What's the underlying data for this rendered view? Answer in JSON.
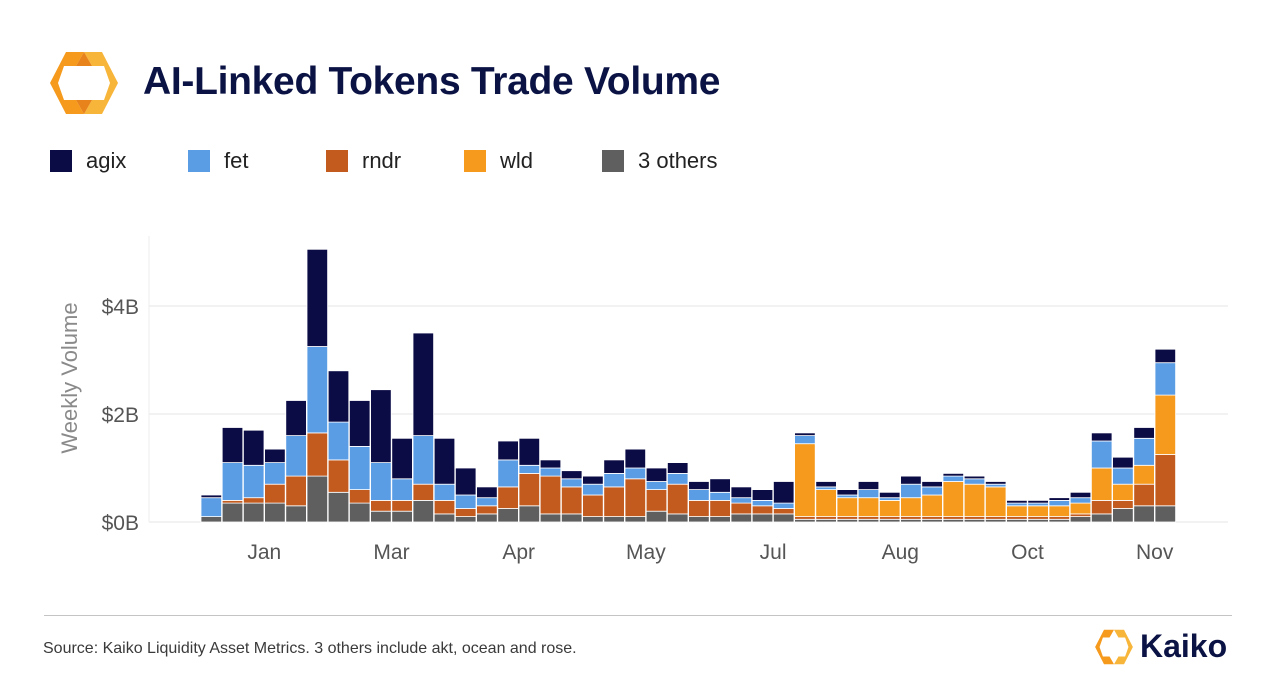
{
  "header": {
    "title": "AI-Linked Tokens Trade Volume",
    "logo_icon": "kaiko-hexagon-logo-icon"
  },
  "colors": {
    "agix": "#0b0b45",
    "fet": "#5b9de4",
    "rndr": "#c35a1e",
    "wld": "#f59a1d",
    "others": "#5f5f5f",
    "title": "#0b1345"
  },
  "legend": [
    {
      "key": "agix",
      "label": "agix",
      "color": "#0b0b45"
    },
    {
      "key": "fet",
      "label": "fet",
      "color": "#5b9de4"
    },
    {
      "key": "rndr",
      "label": "rndr",
      "color": "#c35a1e"
    },
    {
      "key": "wld",
      "label": "wld",
      "color": "#f59a1d"
    },
    {
      "key": "others",
      "label": "3 others",
      "color": "#5f5f5f"
    }
  ],
  "chart_data": {
    "type": "bar",
    "stacked": true,
    "title": "AI-Linked Tokens Trade Volume",
    "xlabel": "",
    "ylabel": "Weekly Volume",
    "ylim": [
      0,
      5.2
    ],
    "y_ticks": [
      0,
      2,
      4
    ],
    "y_tick_labels": [
      "$0B",
      "$2B",
      "$4B"
    ],
    "x_tick_labels": [
      "Jan",
      "Mar",
      "Apr",
      "May",
      "Jul",
      "Aug",
      "Oct",
      "Nov"
    ],
    "x_tick_bar_index": [
      2.5,
      8.5,
      14.5,
      20.5,
      26.5,
      32.5,
      38.5,
      44.5
    ],
    "grid": true,
    "legend_position": "top-left",
    "categories": [
      "w1",
      "w2",
      "w3",
      "w4",
      "w5",
      "w6",
      "w7",
      "w8",
      "w9",
      "w10",
      "w11",
      "w12",
      "w13",
      "w14",
      "w15",
      "w16",
      "w17",
      "w18",
      "w19",
      "w20",
      "w21",
      "w22",
      "w23",
      "w24",
      "w25",
      "w26",
      "w27",
      "w28",
      "w29",
      "w30",
      "w31",
      "w32",
      "w33",
      "w34",
      "w35",
      "w36",
      "w37",
      "w38",
      "w39",
      "w40",
      "w41",
      "w42",
      "w43",
      "w44",
      "w45",
      "w46"
    ],
    "series": [
      {
        "name": "3 others",
        "key": "others",
        "values": [
          0.1,
          0.35,
          0.35,
          0.35,
          0.3,
          0.85,
          0.55,
          0.35,
          0.2,
          0.2,
          0.4,
          0.15,
          0.1,
          0.15,
          0.25,
          0.3,
          0.15,
          0.15,
          0.1,
          0.1,
          0.1,
          0.2,
          0.15,
          0.1,
          0.1,
          0.15,
          0.15,
          0.15,
          0.05,
          0.05,
          0.05,
          0.05,
          0.05,
          0.05,
          0.05,
          0.05,
          0.05,
          0.05,
          0.05,
          0.05,
          0.05,
          0.1,
          0.15,
          0.25,
          0.3,
          0.3
        ]
      },
      {
        "name": "rndr",
        "key": "rndr",
        "values": [
          0.0,
          0.05,
          0.1,
          0.35,
          0.55,
          0.8,
          0.6,
          0.25,
          0.2,
          0.2,
          0.3,
          0.25,
          0.15,
          0.15,
          0.4,
          0.6,
          0.7,
          0.5,
          0.4,
          0.55,
          0.7,
          0.4,
          0.55,
          0.3,
          0.3,
          0.2,
          0.15,
          0.1,
          0.05,
          0.05,
          0.05,
          0.05,
          0.05,
          0.05,
          0.05,
          0.05,
          0.05,
          0.05,
          0.05,
          0.05,
          0.05,
          0.05,
          0.25,
          0.15,
          0.4,
          0.95
        ]
      },
      {
        "name": "wld",
        "key": "wld",
        "values": [
          0,
          0,
          0,
          0,
          0,
          0,
          0,
          0,
          0,
          0,
          0,
          0,
          0,
          0,
          0,
          0,
          0,
          0,
          0,
          0,
          0,
          0,
          0,
          0,
          0,
          0,
          0,
          0,
          1.35,
          0.5,
          0.35,
          0.35,
          0.3,
          0.35,
          0.4,
          0.65,
          0.6,
          0.55,
          0.2,
          0.2,
          0.2,
          0.2,
          0.6,
          0.3,
          0.35,
          1.1
        ]
      },
      {
        "name": "fet",
        "key": "fet",
        "values": [
          0.35,
          0.7,
          0.6,
          0.4,
          0.75,
          1.6,
          0.7,
          0.8,
          0.7,
          0.4,
          0.9,
          0.3,
          0.25,
          0.15,
          0.5,
          0.15,
          0.15,
          0.15,
          0.2,
          0.25,
          0.2,
          0.15,
          0.2,
          0.2,
          0.15,
          0.1,
          0.1,
          0.1,
          0.15,
          0.05,
          0.05,
          0.15,
          0.05,
          0.25,
          0.15,
          0.1,
          0.1,
          0.05,
          0.05,
          0.05,
          0.1,
          0.1,
          0.5,
          0.3,
          0.5,
          0.6
        ]
      },
      {
        "name": "agix",
        "key": "agix",
        "values": [
          0.05,
          0.65,
          0.65,
          0.25,
          0.65,
          1.8,
          0.95,
          0.85,
          1.35,
          0.75,
          1.9,
          0.85,
          0.5,
          0.2,
          0.35,
          0.5,
          0.15,
          0.15,
          0.15,
          0.25,
          0.35,
          0.25,
          0.2,
          0.15,
          0.25,
          0.2,
          0.2,
          0.4,
          0.05,
          0.1,
          0.1,
          0.15,
          0.1,
          0.15,
          0.1,
          0.05,
          0.05,
          0.05,
          0.05,
          0.05,
          0.05,
          0.1,
          0.15,
          0.2,
          0.2,
          0.25
        ]
      }
    ],
    "label_icon": "kaiko-logo-icon"
  },
  "footer": {
    "source": "Source: Kaiko Liquidity Asset Metrics. 3 others include akt, ocean and rose.",
    "brand": "Kaiko",
    "brand_icon": "kaiko-brand-logo-icon"
  }
}
